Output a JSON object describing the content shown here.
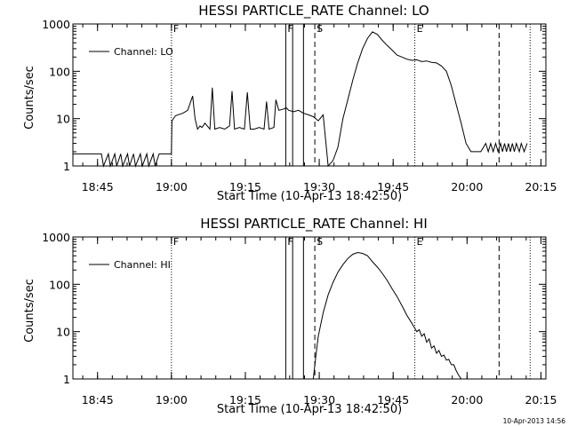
{
  "footer": {
    "timestamp": "10-Apr-2013 14:56"
  },
  "chart_data": [
    {
      "type": "line",
      "title": "HESSI PARTICLE_RATE Channel: LO",
      "xlabel": "Start Time (10-Apr-13 18:42:50)",
      "ylabel": "Counts/sec",
      "yscale": "log",
      "ylim": [
        1,
        1000
      ],
      "xlim_min": [
        -2.8,
        93.2
      ],
      "x_tick_min": [
        2.2,
        17.2,
        32.2,
        47.2,
        62.2,
        77.2,
        92.2
      ],
      "x_tick_labels": [
        "18:45",
        "19:00",
        "19:15",
        "19:30",
        "19:45",
        "20:00",
        "20:15"
      ],
      "y_tick_values": [
        1,
        10,
        100,
        1000
      ],
      "y_tick_labels": [
        "1",
        "10",
        "100",
        "1000"
      ],
      "legend": {
        "label": "Channel: LO",
        "position": "top-left"
      },
      "flags": [
        {
          "label": "F",
          "min": 17.2,
          "style": "dotted"
        },
        {
          "label": "F",
          "min": 40.4,
          "style": "solid"
        },
        {
          "label": "",
          "min": 41.8,
          "style": "solid"
        },
        {
          "label": "",
          "min": 44.0,
          "style": "solid"
        },
        {
          "label": "S",
          "min": 46.3,
          "style": "dashed"
        },
        {
          "label": "E",
          "min": 66.6,
          "style": "dotted"
        },
        {
          "label": "",
          "min": 83.7,
          "style": "dashed"
        },
        {
          "label": "",
          "min": 90.0,
          "style": "dotted"
        }
      ],
      "series": [
        {
          "name": "",
          "x_min": [
            -2.8,
            3.0,
            3.4,
            4.4,
            4.8,
            5.7,
            6.1,
            6.9,
            7.3,
            8.3,
            8.7,
            9.5,
            9.9,
            10.9,
            11.3,
            12.2,
            12.6,
            13.5,
            13.9,
            14.7,
            15.1,
            17.2,
            17.3,
            18.0,
            19.5,
            20.5,
            21.5,
            22.0,
            22.5,
            23.0,
            23.4,
            24.0,
            25.0,
            25.5,
            26.0,
            27.0,
            28.0,
            29.0,
            29.5,
            30.0,
            31.0,
            32.0,
            32.6,
            33.2,
            34.0,
            35.0,
            36.0,
            36.5,
            37.0,
            38.0,
            38.4,
            39.0,
            40.0,
            40.5,
            41.0,
            42.0,
            43.0,
            43.5,
            44.0,
            45.0,
            46.0,
            47.0,
            48.0,
            49.0,
            50.0,
            51.0,
            52.0,
            53.0,
            54.0,
            55.0,
            56.0,
            57.0,
            58.0,
            59.0,
            60.0,
            61.0,
            62.0,
            63.0,
            64.0,
            65.0,
            66.0,
            67.0,
            68.0,
            69.0,
            70.0,
            71.0,
            72.0,
            73.0,
            74.0,
            75.0,
            76.0,
            77.0,
            78.0,
            79.0,
            80.0,
            81.0,
            81.5,
            82.0,
            82.5,
            83.0,
            83.5,
            84.0,
            84.4,
            84.8,
            85.2,
            85.6,
            86.0,
            86.4,
            86.8,
            87.2,
            87.8,
            88.2,
            88.8,
            89.4
          ],
          "y": [
            1.8,
            1.8,
            1,
            1.8,
            1,
            1.8,
            1,
            1.8,
            1,
            1.8,
            1,
            1.8,
            1,
            1.8,
            1,
            1.8,
            1,
            1.8,
            1,
            1.8,
            1.8,
            1.8,
            9,
            11.5,
            13,
            15,
            30,
            10,
            6,
            7,
            6.5,
            8,
            6,
            45,
            6,
            6.5,
            6,
            7,
            38,
            6,
            6.5,
            6,
            36,
            6,
            6,
            6.5,
            6,
            23,
            6,
            6.5,
            25,
            15,
            16,
            17,
            15,
            14,
            15,
            14,
            13,
            12,
            11,
            9,
            12,
            1,
            1.3,
            2.5,
            10,
            25,
            65,
            150,
            300,
            500,
            680,
            600,
            450,
            350,
            280,
            220,
            200,
            180,
            170,
            175,
            160,
            165,
            155,
            150,
            130,
            100,
            50,
            20,
            8,
            3,
            2,
            2,
            2,
            3,
            2,
            3,
            2,
            3,
            2,
            3,
            2,
            3,
            2,
            3,
            2,
            3,
            2,
            3,
            2,
            3,
            2,
            3
          ]
        }
      ]
    },
    {
      "type": "line",
      "title": "HESSI PARTICLE_RATE Channel: HI",
      "xlabel": "Start Time (10-Apr-13 18:42:50)",
      "ylabel": "Counts/sec",
      "yscale": "log",
      "ylim": [
        1,
        1000
      ],
      "xlim_min": [
        -2.8,
        93.2
      ],
      "x_tick_min": [
        2.2,
        17.2,
        32.2,
        47.2,
        62.2,
        77.2,
        92.2
      ],
      "x_tick_labels": [
        "18:45",
        "19:00",
        "19:15",
        "19:30",
        "19:45",
        "20:00",
        "20:15"
      ],
      "y_tick_values": [
        1,
        10,
        100,
        1000
      ],
      "y_tick_labels": [
        "1",
        "10",
        "100",
        "1000"
      ],
      "legend": {
        "label": "Channel: HI",
        "position": "top-left"
      },
      "flags": [
        {
          "label": "F",
          "min": 17.2,
          "style": "dotted"
        },
        {
          "label": "F",
          "min": 40.4,
          "style": "solid"
        },
        {
          "label": "",
          "min": 41.8,
          "style": "solid"
        },
        {
          "label": "",
          "min": 44.0,
          "style": "solid"
        },
        {
          "label": "S",
          "min": 46.3,
          "style": "dashed"
        },
        {
          "label": "E",
          "min": 66.6,
          "style": "dotted"
        },
        {
          "label": "",
          "min": 83.7,
          "style": "dashed"
        },
        {
          "label": "",
          "min": 90.0,
          "style": "dotted"
        }
      ],
      "series": [
        {
          "name": "",
          "x_min": [
            46.0,
            46.5,
            47.0,
            48.0,
            49.0,
            50.0,
            51.0,
            52.0,
            53.0,
            54.0,
            55.0,
            56.0,
            57.0,
            58.0,
            59.0,
            60.0,
            61.0,
            62.0,
            63.0,
            64.0,
            65.0,
            66.0,
            67.0,
            67.5,
            68.0,
            68.5,
            69.0,
            69.5,
            70.0,
            70.5,
            71.0,
            71.5,
            72.0,
            72.5,
            73.0,
            73.5,
            74.0,
            74.5,
            75.0,
            75.5,
            76.0
          ],
          "y": [
            1,
            3,
            8,
            25,
            60,
            110,
            180,
            260,
            350,
            430,
            470,
            450,
            400,
            300,
            230,
            170,
            120,
            80,
            55,
            35,
            22,
            15,
            10,
            11,
            8,
            9,
            6,
            7,
            4.5,
            5,
            3.5,
            4,
            3,
            3.2,
            2.5,
            2.6,
            2,
            2,
            1.5,
            1.2,
            1
          ]
        }
      ]
    }
  ]
}
